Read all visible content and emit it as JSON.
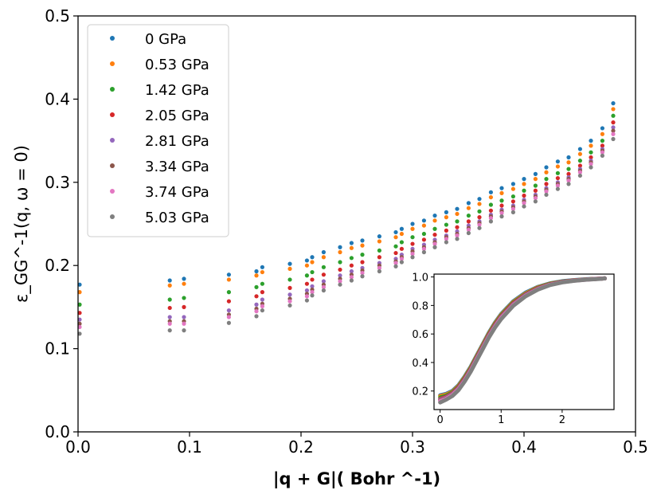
{
  "chart_data": [
    {
      "type": "scatter",
      "title": "",
      "xlabel": "|q + G|( Bohr ^-1)",
      "ylabel": "ε_GG^-1(q, ω = 0)",
      "xlim": [
        0.0,
        0.5
      ],
      "ylim": [
        0.0,
        0.5
      ],
      "xticks": [
        "0.0",
        "0.1",
        "0.2",
        "0.3",
        "0.4",
        "0.5"
      ],
      "yticks": [
        "0.0",
        "0.1",
        "0.2",
        "0.3",
        "0.4",
        "0.5"
      ],
      "legend_position": "top-left",
      "pressure_ticks": [
        0.0,
        0.082,
        0.095,
        0.135,
        0.16,
        0.165,
        0.19,
        0.205,
        0.21,
        0.22,
        0.235,
        0.245,
        0.255,
        0.27,
        0.285,
        0.29,
        0.3,
        0.31,
        0.32,
        0.33,
        0.34,
        0.35,
        0.36,
        0.37,
        0.38,
        0.39,
        0.4,
        0.41,
        0.42,
        0.43,
        0.44,
        0.45,
        0.46,
        0.47,
        0.48
      ],
      "series": [
        {
          "name": "0 GPa",
          "color": "#1f77b4",
          "values": [
            0.177,
            0.182,
            0.184,
            0.189,
            0.193,
            0.198,
            0.202,
            0.206,
            0.21,
            0.216,
            0.222,
            0.227,
            0.23,
            0.235,
            0.24,
            0.244,
            0.25,
            0.254,
            0.26,
            0.264,
            0.268,
            0.275,
            0.28,
            0.288,
            0.293,
            0.298,
            0.304,
            0.31,
            0.318,
            0.325,
            0.33,
            0.34,
            0.35,
            0.365,
            0.395
          ]
        },
        {
          "name": "0.53 GPa",
          "color": "#ff7f0e",
          "values": [
            0.168,
            0.176,
            0.178,
            0.183,
            0.188,
            0.192,
            0.196,
            0.2,
            0.204,
            0.21,
            0.216,
            0.221,
            0.224,
            0.229,
            0.234,
            0.238,
            0.244,
            0.248,
            0.254,
            0.258,
            0.262,
            0.269,
            0.274,
            0.282,
            0.287,
            0.292,
            0.298,
            0.304,
            0.312,
            0.319,
            0.324,
            0.334,
            0.344,
            0.358,
            0.388
          ]
        },
        {
          "name": "1.42 GPa",
          "color": "#2ca02c",
          "values": [
            0.153,
            0.159,
            0.161,
            0.168,
            0.174,
            0.178,
            0.183,
            0.188,
            0.192,
            0.198,
            0.204,
            0.209,
            0.213,
            0.218,
            0.223,
            0.228,
            0.234,
            0.238,
            0.244,
            0.249,
            0.253,
            0.26,
            0.265,
            0.273,
            0.278,
            0.283,
            0.29,
            0.296,
            0.304,
            0.311,
            0.316,
            0.326,
            0.336,
            0.35,
            0.38
          ]
        },
        {
          "name": "2.05 GPa",
          "color": "#d62728",
          "values": [
            0.143,
            0.149,
            0.15,
            0.157,
            0.163,
            0.168,
            0.173,
            0.178,
            0.183,
            0.189,
            0.195,
            0.2,
            0.204,
            0.21,
            0.215,
            0.22,
            0.226,
            0.231,
            0.237,
            0.242,
            0.246,
            0.253,
            0.258,
            0.266,
            0.272,
            0.277,
            0.284,
            0.29,
            0.298,
            0.305,
            0.31,
            0.32,
            0.33,
            0.344,
            0.372
          ]
        },
        {
          "name": "2.81 GPa",
          "color": "#9467bd",
          "values": [
            0.135,
            0.138,
            0.138,
            0.146,
            0.153,
            0.159,
            0.165,
            0.17,
            0.175,
            0.181,
            0.188,
            0.193,
            0.197,
            0.203,
            0.208,
            0.213,
            0.22,
            0.225,
            0.231,
            0.236,
            0.241,
            0.248,
            0.253,
            0.261,
            0.267,
            0.272,
            0.279,
            0.285,
            0.293,
            0.3,
            0.306,
            0.316,
            0.326,
            0.34,
            0.366
          ]
        },
        {
          "name": "3.34 GPa",
          "color": "#8c564b",
          "values": [
            0.13,
            0.133,
            0.133,
            0.141,
            0.148,
            0.154,
            0.16,
            0.166,
            0.171,
            0.177,
            0.184,
            0.189,
            0.194,
            0.2,
            0.205,
            0.21,
            0.217,
            0.222,
            0.228,
            0.234,
            0.238,
            0.245,
            0.251,
            0.259,
            0.265,
            0.27,
            0.277,
            0.283,
            0.291,
            0.298,
            0.304,
            0.314,
            0.324,
            0.338,
            0.362
          ]
        },
        {
          "name": "3.74 GPa",
          "color": "#e377c2",
          "values": [
            0.126,
            0.13,
            0.13,
            0.138,
            0.145,
            0.151,
            0.157,
            0.163,
            0.168,
            0.174,
            0.181,
            0.186,
            0.191,
            0.197,
            0.203,
            0.208,
            0.214,
            0.22,
            0.226,
            0.232,
            0.236,
            0.243,
            0.249,
            0.257,
            0.263,
            0.268,
            0.275,
            0.281,
            0.289,
            0.296,
            0.302,
            0.312,
            0.322,
            0.336,
            0.358
          ]
        },
        {
          "name": "5.03 GPa",
          "color": "#7f7f7f",
          "values": [
            0.118,
            0.122,
            0.122,
            0.131,
            0.139,
            0.146,
            0.152,
            0.158,
            0.164,
            0.17,
            0.177,
            0.182,
            0.187,
            0.193,
            0.199,
            0.204,
            0.21,
            0.216,
            0.222,
            0.228,
            0.232,
            0.239,
            0.245,
            0.253,
            0.259,
            0.264,
            0.271,
            0.277,
            0.285,
            0.292,
            0.298,
            0.308,
            0.318,
            0.332,
            0.352
          ]
        }
      ]
    },
    {
      "type": "line",
      "title": "",
      "xlabel": "",
      "ylabel": "",
      "xlim": [
        -0.1,
        2.85
      ],
      "ylim": [
        0.07,
        1.02
      ],
      "xticks": [
        "0",
        "1",
        "2"
      ],
      "yticks": [
        "0.2",
        "0.4",
        "0.6",
        "0.8",
        "1.0"
      ],
      "x": [
        0.0,
        0.1,
        0.2,
        0.3,
        0.4,
        0.5,
        0.6,
        0.7,
        0.8,
        0.9,
        1.0,
        1.2,
        1.4,
        1.6,
        1.8,
        2.0,
        2.2,
        2.4,
        2.6,
        2.7
      ],
      "series": [
        {
          "name": "0 GPa",
          "color": "#1f77b4",
          "values": [
            0.17,
            0.18,
            0.2,
            0.24,
            0.3,
            0.37,
            0.45,
            0.53,
            0.61,
            0.68,
            0.74,
            0.83,
            0.89,
            0.93,
            0.955,
            0.97,
            0.978,
            0.984,
            0.988,
            0.99
          ]
        },
        {
          "name": "0.53 GPa",
          "color": "#ff7f0e",
          "values": [
            0.165,
            0.175,
            0.195,
            0.235,
            0.295,
            0.365,
            0.445,
            0.525,
            0.605,
            0.675,
            0.735,
            0.825,
            0.885,
            0.927,
            0.953,
            0.968,
            0.977,
            0.983,
            0.988,
            0.99
          ]
        },
        {
          "name": "1.42 GPa",
          "color": "#2ca02c",
          "values": [
            0.155,
            0.168,
            0.19,
            0.23,
            0.29,
            0.36,
            0.44,
            0.52,
            0.6,
            0.67,
            0.73,
            0.82,
            0.88,
            0.924,
            0.951,
            0.967,
            0.976,
            0.983,
            0.987,
            0.99
          ]
        },
        {
          "name": "2.05 GPa",
          "color": "#d62728",
          "values": [
            0.145,
            0.16,
            0.185,
            0.225,
            0.285,
            0.355,
            0.435,
            0.515,
            0.595,
            0.665,
            0.725,
            0.815,
            0.877,
            0.921,
            0.949,
            0.966,
            0.976,
            0.982,
            0.987,
            0.99
          ]
        },
        {
          "name": "2.81 GPa",
          "color": "#9467bd",
          "values": [
            0.14,
            0.155,
            0.18,
            0.22,
            0.28,
            0.35,
            0.43,
            0.51,
            0.59,
            0.66,
            0.72,
            0.81,
            0.874,
            0.918,
            0.947,
            0.965,
            0.975,
            0.982,
            0.987,
            0.99
          ]
        },
        {
          "name": "3.34 GPa",
          "color": "#8c564b",
          "values": [
            0.135,
            0.15,
            0.176,
            0.216,
            0.276,
            0.346,
            0.426,
            0.506,
            0.586,
            0.656,
            0.716,
            0.806,
            0.871,
            0.916,
            0.946,
            0.964,
            0.975,
            0.982,
            0.987,
            0.99
          ]
        },
        {
          "name": "3.74 GPa",
          "color": "#e377c2",
          "values": [
            0.13,
            0.146,
            0.172,
            0.212,
            0.272,
            0.342,
            0.422,
            0.502,
            0.582,
            0.652,
            0.712,
            0.803,
            0.868,
            0.914,
            0.945,
            0.963,
            0.974,
            0.981,
            0.987,
            0.99
          ]
        },
        {
          "name": "5.03 GPa",
          "color": "#7f7f7f",
          "values": [
            0.12,
            0.14,
            0.165,
            0.205,
            0.265,
            0.335,
            0.415,
            0.495,
            0.575,
            0.645,
            0.705,
            0.798,
            0.864,
            0.911,
            0.943,
            0.962,
            0.973,
            0.981,
            0.986,
            0.99
          ]
        }
      ]
    }
  ]
}
